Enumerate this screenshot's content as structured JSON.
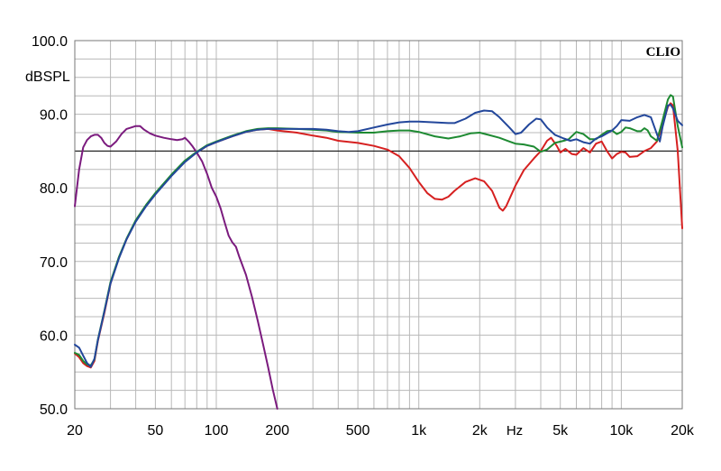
{
  "chart_data": {
    "type": "line",
    "brand": "CLIO",
    "ylabel": "dBSPL",
    "xlabel": "Hz",
    "x_scale": "log",
    "xlim": [
      20,
      20000
    ],
    "ylim": [
      50,
      100
    ],
    "grid": true,
    "y_ticks": [
      {
        "value": 100,
        "label": "100.0"
      },
      {
        "value": 90,
        "label": "90.0"
      },
      {
        "value": 80,
        "label": "80.0"
      },
      {
        "value": 70,
        "label": "70.0"
      },
      {
        "value": 60,
        "label": "60.0"
      },
      {
        "value": 50,
        "label": "50.0"
      }
    ],
    "x_ticks": [
      {
        "value": 20,
        "label": "20"
      },
      {
        "value": 50,
        "label": "50"
      },
      {
        "value": 100,
        "label": "100"
      },
      {
        "value": 200,
        "label": "200"
      },
      {
        "value": 500,
        "label": "500"
      },
      {
        "value": 1000,
        "label": "1k"
      },
      {
        "value": 2000,
        "label": "2k"
      },
      {
        "value": 5000,
        "label": "5k"
      },
      {
        "value": 10000,
        "label": "10k"
      },
      {
        "value": 20000,
        "label": "20k"
      }
    ],
    "reference_lines": [
      {
        "value": 85,
        "color": "#000000"
      }
    ],
    "series": [
      {
        "color": "#7b1b7e",
        "points": [
          [
            20,
            77.5
          ],
          [
            21,
            82.5
          ],
          [
            22,
            85.5
          ],
          [
            23,
            86.5
          ],
          [
            24,
            87.0
          ],
          [
            25,
            87.2
          ],
          [
            26,
            87.2
          ],
          [
            27,
            86.8
          ],
          [
            28,
            86.1
          ],
          [
            29,
            85.7
          ],
          [
            30,
            85.6
          ],
          [
            32,
            86.3
          ],
          [
            34,
            87.3
          ],
          [
            36,
            88.0
          ],
          [
            38,
            88.2
          ],
          [
            40,
            88.4
          ],
          [
            42,
            88.4
          ],
          [
            44,
            87.9
          ],
          [
            47,
            87.4
          ],
          [
            50,
            87.1
          ],
          [
            55,
            86.8
          ],
          [
            60,
            86.6
          ],
          [
            64,
            86.5
          ],
          [
            68,
            86.6
          ],
          [
            70,
            86.8
          ],
          [
            73,
            86.3
          ],
          [
            76,
            85.7
          ],
          [
            80,
            84.8
          ],
          [
            85,
            83.6
          ],
          [
            90,
            81.9
          ],
          [
            95,
            80.0
          ],
          [
            100,
            78.8
          ],
          [
            105,
            77.2
          ],
          [
            110,
            75.3
          ],
          [
            115,
            73.5
          ],
          [
            120,
            72.6
          ],
          [
            125,
            72.0
          ],
          [
            130,
            70.6
          ],
          [
            140,
            68.2
          ],
          [
            150,
            65.2
          ],
          [
            160,
            62.0
          ],
          [
            170,
            58.8
          ],
          [
            180,
            55.7
          ],
          [
            190,
            52.6
          ],
          [
            200,
            50.0
          ]
        ]
      },
      {
        "color": "#d62020",
        "points": [
          [
            20,
            57.5
          ],
          [
            21,
            57.0
          ],
          [
            22,
            56.2
          ],
          [
            23,
            55.8
          ],
          [
            24,
            55.6
          ],
          [
            25,
            56.5
          ],
          [
            26,
            59.2
          ],
          [
            28,
            63.0
          ],
          [
            30,
            67.0
          ],
          [
            33,
            70.5
          ],
          [
            36,
            73.0
          ],
          [
            40,
            75.5
          ],
          [
            45,
            77.6
          ],
          [
            50,
            79.2
          ],
          [
            60,
            81.7
          ],
          [
            70,
            83.6
          ],
          [
            80,
            84.8
          ],
          [
            90,
            85.7
          ],
          [
            100,
            86.2
          ],
          [
            120,
            87.0
          ],
          [
            140,
            87.6
          ],
          [
            160,
            87.9
          ],
          [
            180,
            88.0
          ],
          [
            200,
            87.8
          ],
          [
            250,
            87.5
          ],
          [
            300,
            87.1
          ],
          [
            350,
            86.8
          ],
          [
            400,
            86.4
          ],
          [
            500,
            86.1
          ],
          [
            600,
            85.7
          ],
          [
            700,
            85.2
          ],
          [
            800,
            84.3
          ],
          [
            900,
            82.7
          ],
          [
            1000,
            80.8
          ],
          [
            1100,
            79.3
          ],
          [
            1200,
            78.5
          ],
          [
            1300,
            78.4
          ],
          [
            1400,
            78.8
          ],
          [
            1500,
            79.6
          ],
          [
            1700,
            80.8
          ],
          [
            1900,
            81.3
          ],
          [
            2100,
            80.9
          ],
          [
            2300,
            79.6
          ],
          [
            2500,
            77.3
          ],
          [
            2600,
            76.9
          ],
          [
            2700,
            77.5
          ],
          [
            3000,
            80.3
          ],
          [
            3300,
            82.4
          ],
          [
            3700,
            84.0
          ],
          [
            4000,
            85.0
          ],
          [
            4300,
            86.4
          ],
          [
            4500,
            86.8
          ],
          [
            4800,
            85.7
          ],
          [
            5000,
            84.8
          ],
          [
            5300,
            85.3
          ],
          [
            5700,
            84.6
          ],
          [
            6000,
            84.5
          ],
          [
            6500,
            85.4
          ],
          [
            7000,
            84.8
          ],
          [
            7500,
            86.0
          ],
          [
            8000,
            86.3
          ],
          [
            8500,
            85.0
          ],
          [
            9000,
            84.0
          ],
          [
            9500,
            84.6
          ],
          [
            10000,
            84.9
          ],
          [
            10500,
            84.8
          ],
          [
            11000,
            84.2
          ],
          [
            12000,
            84.3
          ],
          [
            13000,
            85.0
          ],
          [
            14000,
            85.4
          ],
          [
            15000,
            86.3
          ],
          [
            16000,
            88.6
          ],
          [
            17000,
            91.0
          ],
          [
            17500,
            91.5
          ],
          [
            18000,
            91.2
          ],
          [
            19000,
            85.0
          ],
          [
            20000,
            74.5
          ]
        ]
      },
      {
        "color": "#1e8a32",
        "points": [
          [
            20,
            57.6
          ],
          [
            21,
            57.3
          ],
          [
            22,
            56.5
          ],
          [
            23,
            56.0
          ],
          [
            24,
            55.9
          ],
          [
            25,
            56.7
          ],
          [
            26,
            59.4
          ],
          [
            28,
            63.3
          ],
          [
            30,
            67.2
          ],
          [
            33,
            70.6
          ],
          [
            36,
            73.1
          ],
          [
            40,
            75.6
          ],
          [
            45,
            77.7
          ],
          [
            50,
            79.3
          ],
          [
            60,
            81.8
          ],
          [
            70,
            83.7
          ],
          [
            80,
            84.9
          ],
          [
            90,
            85.8
          ],
          [
            100,
            86.3
          ],
          [
            120,
            87.1
          ],
          [
            140,
            87.7
          ],
          [
            160,
            88.0
          ],
          [
            180,
            88.1
          ],
          [
            200,
            88.1
          ],
          [
            250,
            88.0
          ],
          [
            300,
            87.9
          ],
          [
            350,
            87.8
          ],
          [
            400,
            87.6
          ],
          [
            500,
            87.5
          ],
          [
            600,
            87.5
          ],
          [
            700,
            87.7
          ],
          [
            800,
            87.8
          ],
          [
            900,
            87.8
          ],
          [
            1000,
            87.6
          ],
          [
            1200,
            87.0
          ],
          [
            1400,
            86.7
          ],
          [
            1600,
            87.0
          ],
          [
            1800,
            87.4
          ],
          [
            2000,
            87.5
          ],
          [
            2200,
            87.2
          ],
          [
            2500,
            86.8
          ],
          [
            2800,
            86.3
          ],
          [
            3000,
            86.0
          ],
          [
            3300,
            85.9
          ],
          [
            3700,
            85.6
          ],
          [
            4000,
            84.9
          ],
          [
            4300,
            85.2
          ],
          [
            4700,
            86.1
          ],
          [
            5200,
            86.4
          ],
          [
            5500,
            86.6
          ],
          [
            6000,
            87.6
          ],
          [
            6500,
            87.3
          ],
          [
            7000,
            86.6
          ],
          [
            7500,
            86.6
          ],
          [
            8000,
            87.2
          ],
          [
            8500,
            87.7
          ],
          [
            9000,
            87.8
          ],
          [
            9500,
            87.3
          ],
          [
            10000,
            87.6
          ],
          [
            10500,
            88.2
          ],
          [
            11000,
            88.1
          ],
          [
            12000,
            87.7
          ],
          [
            12500,
            87.7
          ],
          [
            13000,
            88.1
          ],
          [
            13500,
            87.8
          ],
          [
            14000,
            87.0
          ],
          [
            15000,
            86.4
          ],
          [
            16000,
            89.2
          ],
          [
            17000,
            92.0
          ],
          [
            17500,
            92.6
          ],
          [
            18000,
            92.4
          ],
          [
            19000,
            88.4
          ],
          [
            20000,
            85.5
          ]
        ]
      },
      {
        "color": "#23479b",
        "points": [
          [
            20,
            58.7
          ],
          [
            21,
            58.3
          ],
          [
            22,
            57.2
          ],
          [
            23,
            56.2
          ],
          [
            24,
            55.7
          ],
          [
            25,
            56.8
          ],
          [
            26,
            59.3
          ],
          [
            28,
            63.2
          ],
          [
            30,
            67.0
          ],
          [
            33,
            70.4
          ],
          [
            36,
            73.0
          ],
          [
            40,
            75.4
          ],
          [
            45,
            77.5
          ],
          [
            50,
            79.1
          ],
          [
            60,
            81.6
          ],
          [
            70,
            83.5
          ],
          [
            80,
            84.8
          ],
          [
            90,
            85.7
          ],
          [
            100,
            86.2
          ],
          [
            120,
            87.0
          ],
          [
            140,
            87.6
          ],
          [
            160,
            87.9
          ],
          [
            180,
            88.0
          ],
          [
            200,
            88.0
          ],
          [
            250,
            88.0
          ],
          [
            300,
            88.0
          ],
          [
            350,
            87.9
          ],
          [
            400,
            87.7
          ],
          [
            450,
            87.6
          ],
          [
            500,
            87.7
          ],
          [
            600,
            88.2
          ],
          [
            700,
            88.6
          ],
          [
            800,
            88.9
          ],
          [
            900,
            89.0
          ],
          [
            1000,
            89.0
          ],
          [
            1200,
            88.9
          ],
          [
            1400,
            88.8
          ],
          [
            1500,
            88.8
          ],
          [
            1700,
            89.4
          ],
          [
            1900,
            90.2
          ],
          [
            2100,
            90.5
          ],
          [
            2300,
            90.4
          ],
          [
            2500,
            89.6
          ],
          [
            2800,
            88.2
          ],
          [
            3000,
            87.3
          ],
          [
            3200,
            87.5
          ],
          [
            3500,
            88.6
          ],
          [
            3800,
            89.4
          ],
          [
            4000,
            89.3
          ],
          [
            4300,
            88.2
          ],
          [
            4700,
            87.2
          ],
          [
            5200,
            86.7
          ],
          [
            5600,
            86.4
          ],
          [
            6000,
            86.6
          ],
          [
            6500,
            86.2
          ],
          [
            7000,
            86.0
          ],
          [
            7500,
            86.7
          ],
          [
            8000,
            87.0
          ],
          [
            8500,
            87.4
          ],
          [
            9000,
            87.8
          ],
          [
            9500,
            88.4
          ],
          [
            10000,
            89.2
          ],
          [
            11000,
            89.1
          ],
          [
            12000,
            89.6
          ],
          [
            13000,
            89.9
          ],
          [
            14000,
            89.6
          ],
          [
            15000,
            87.3
          ],
          [
            15500,
            86.3
          ],
          [
            16000,
            88.3
          ],
          [
            17000,
            91.2
          ],
          [
            17500,
            91.3
          ],
          [
            18000,
            90.8
          ],
          [
            19000,
            89.1
          ],
          [
            20000,
            88.5
          ]
        ]
      }
    ]
  }
}
